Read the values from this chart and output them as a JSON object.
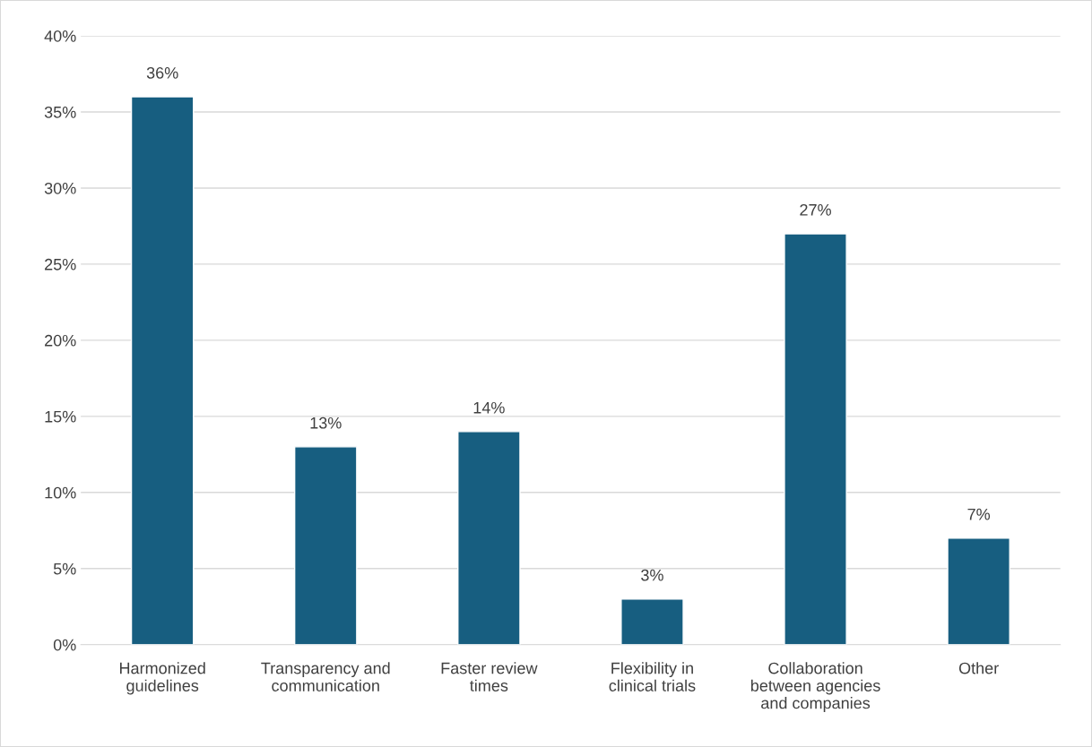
{
  "chart_data": {
    "type": "bar",
    "categories": [
      "Harmonized guidelines",
      "Transparency and communication",
      "Faster review times",
      "Flexibility in clinical trials",
      "Collaboration between agencies and companies",
      "Other"
    ],
    "values": [
      36,
      13,
      14,
      3,
      27,
      7
    ],
    "value_labels": [
      "36%",
      "13%",
      "14%",
      "3%",
      "27%",
      "7%"
    ],
    "color": "#175e80",
    "ylim": [
      0,
      40
    ],
    "yticks": [
      {
        "value": 0,
        "label": "0%"
      },
      {
        "value": 5,
        "label": "5%"
      },
      {
        "value": 10,
        "label": "10%"
      },
      {
        "value": 15,
        "label": "15%"
      },
      {
        "value": 20,
        "label": "20%"
      },
      {
        "value": 25,
        "label": "25%"
      },
      {
        "value": 30,
        "label": "30%"
      },
      {
        "value": 35,
        "label": "35%"
      },
      {
        "value": 40,
        "label": "40%"
      }
    ],
    "grid": "y",
    "legend": false
  }
}
